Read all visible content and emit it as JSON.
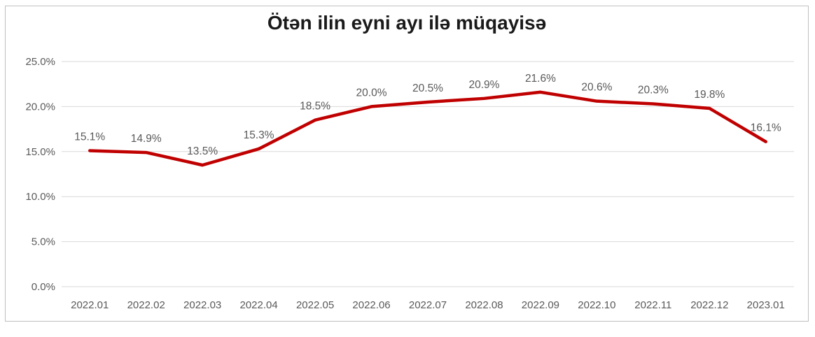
{
  "chart_data": {
    "type": "line",
    "title": "Ötən ilin eyni ayı ilə müqayisə",
    "categories": [
      "2022.01",
      "2022.02",
      "2022.03",
      "2022.04",
      "2022.05",
      "2022.06",
      "2022.07",
      "2022.08",
      "2022.09",
      "2022.10",
      "2022.11",
      "2022.12",
      "2023.01"
    ],
    "series": [
      {
        "name": "Ötən ilin eyni ayı ilə müqayisə",
        "values": [
          15.1,
          14.9,
          13.5,
          15.3,
          18.5,
          20.0,
          20.5,
          20.9,
          21.6,
          20.6,
          20.3,
          19.8,
          16.1
        ],
        "data_labels": [
          "15.1%",
          "14.9%",
          "13.5%",
          "15.3%",
          "18.5%",
          "20.0%",
          "20.5%",
          "20.9%",
          "21.6%",
          "20.6%",
          "20.3%",
          "19.8%",
          "16.1%"
        ]
      }
    ],
    "xlabel": "",
    "ylabel": "",
    "ylim": [
      0,
      25
    ],
    "yticks": [
      0,
      5,
      10,
      15,
      20,
      25
    ],
    "ytick_labels": [
      "0.0%",
      "5.0%",
      "10.0%",
      "15.0%",
      "20.0%",
      "25.0%"
    ],
    "grid": true,
    "legend_position": "none",
    "colors": {
      "line": "#c00000",
      "grid": "#d9d9d9",
      "tick_text": "#595959",
      "data_label_text": "#595959",
      "title_text": "#1a1a1a",
      "frame_border": "#bfbfbf",
      "background": "#ffffff"
    }
  }
}
